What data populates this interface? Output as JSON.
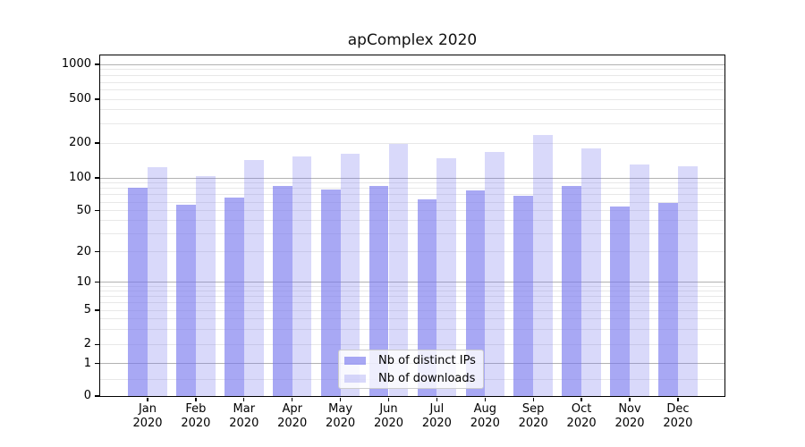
{
  "figure": {
    "title": "apComplex 2020"
  },
  "chart_data": {
    "type": "bar",
    "title": "apComplex 2020",
    "categories": [
      "Jan 2020",
      "Feb 2020",
      "Mar 2020",
      "Apr 2020",
      "May 2020",
      "Jun 2020",
      "Jul 2020",
      "Aug 2020",
      "Sep 2020",
      "Oct 2020",
      "Nov 2020",
      "Dec 2020"
    ],
    "series": [
      {
        "name": "Nb of distinct IPs",
        "color": "rgba(119,119,238,0.64)",
        "values": [
          81,
          57,
          66,
          84,
          78,
          85,
          63,
          77,
          69,
          84,
          55,
          59
        ]
      },
      {
        "name": "Nb of downloads",
        "color": "rgba(119,119,238,0.28)",
        "values": [
          123,
          103,
          142,
          152,
          161,
          195,
          149,
          168,
          235,
          181,
          131,
          126
        ]
      }
    ],
    "xlabel": "",
    "ylabel": "",
    "yscale": "symlog",
    "yticks": [
      0,
      1,
      2,
      5,
      10,
      20,
      50,
      100,
      200,
      500,
      1000
    ],
    "ytick_labels": [
      "0",
      "1",
      "2",
      "5",
      "10",
      "20",
      "50",
      "100",
      "200",
      "500",
      "1000"
    ],
    "minor_grid_values": [
      0.5,
      3,
      4,
      6,
      7,
      8,
      9,
      30,
      40,
      60,
      70,
      80,
      90,
      300,
      400,
      600,
      700,
      800,
      900
    ],
    "mid_grid_values": [
      2,
      5,
      20,
      50,
      200,
      500
    ],
    "major_grid_values": [
      1,
      10,
      100,
      1000
    ],
    "ylim": [
      0,
      1200
    ],
    "grid": "horizontal",
    "legend_position": "lower center",
    "colors": {
      "grid_major": "#b2b2b2",
      "grid_minor": "#e8e8e8",
      "axis": "#000000"
    }
  }
}
